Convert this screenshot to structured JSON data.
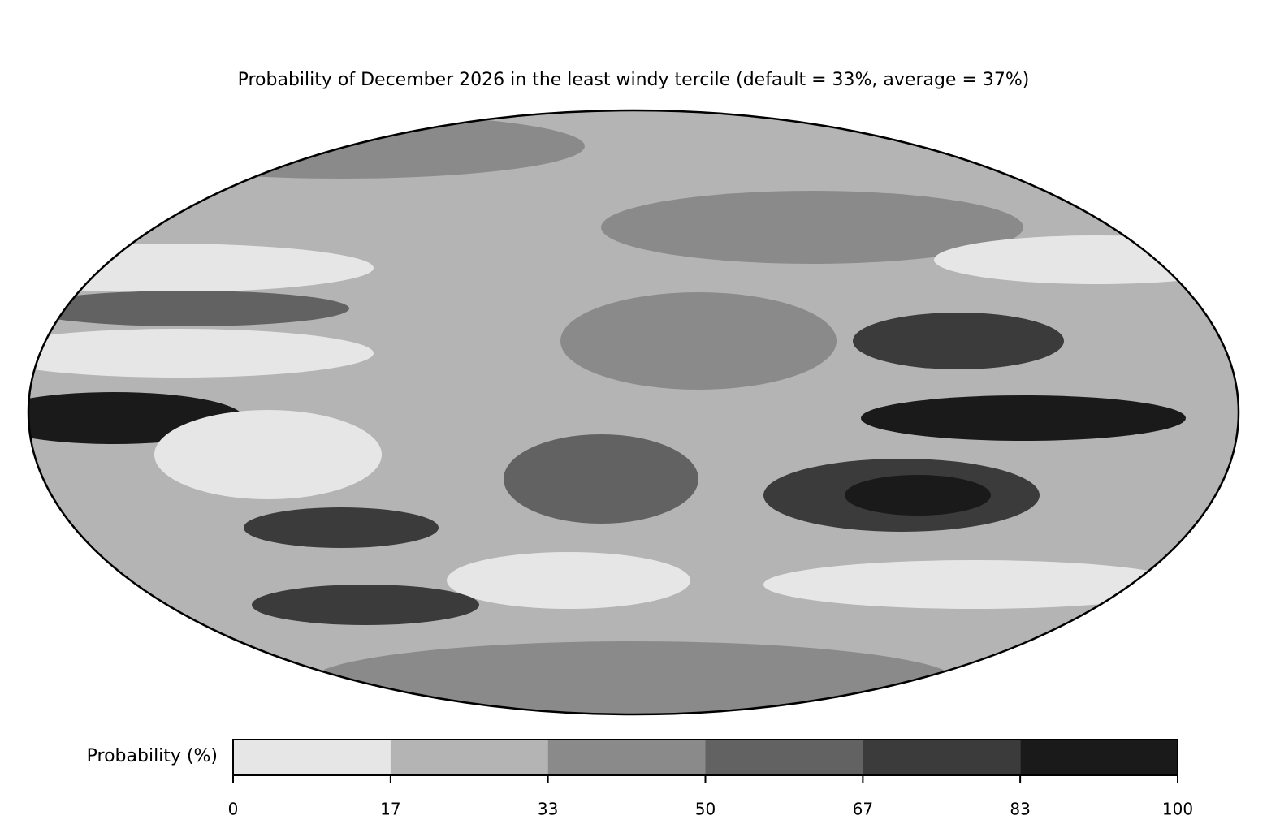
{
  "chart_data": {
    "type": "contour-map",
    "title": "Probability of December 2026 in the least windy tercile (default = 33%, average = 37%)",
    "colorbar": {
      "label": "Probability (%)",
      "lim": [
        0,
        100
      ],
      "ticks": [
        0,
        {
          "value": 16.67,
          "label": "17"
        },
        {
          "value": 33.33,
          "label": "33"
        },
        50,
        {
          "value": 66.67,
          "label": "67"
        },
        {
          "value": 83.33,
          "label": "83"
        },
        100
      ],
      "colors": [
        "#e6e6e6",
        "#b4b4b4",
        "#8a8a8a",
        "#626262",
        "#3b3b3b",
        "#1a1a1a"
      ]
    }
  }
}
